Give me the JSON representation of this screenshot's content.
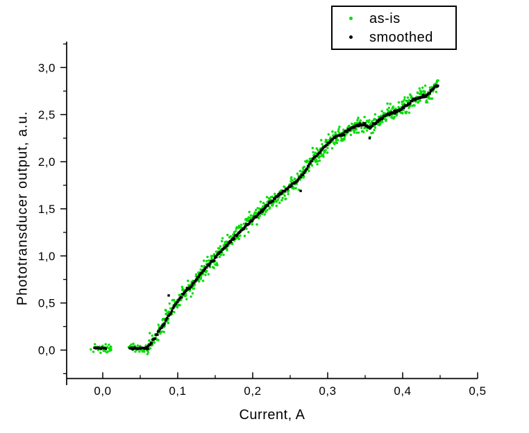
{
  "chart_data": {
    "type": "scatter",
    "title": "",
    "xlabel": "Current, A",
    "ylabel": "Phototransducer output, a.u.",
    "xlim": [
      -0.05,
      0.5
    ],
    "ylim": [
      -0.3,
      3.27
    ],
    "grid": false,
    "background": "#ffffff",
    "axis_color": "#000000",
    "decimal_separator": ",",
    "x_ticks": {
      "major": [
        0.0,
        0.1,
        0.2,
        0.3,
        0.4,
        0.5
      ],
      "labels": [
        "0,0",
        "0,1",
        "0,2",
        "0,3",
        "0,4",
        "0,5"
      ],
      "minor": [
        0.05,
        0.15,
        0.25,
        0.35,
        0.45
      ]
    },
    "y_ticks": {
      "major": [
        0.0,
        0.5,
        1.0,
        1.5,
        2.0,
        2.5,
        3.0
      ],
      "labels": [
        "0,0",
        "0,5",
        "1,0",
        "1,5",
        "2,0",
        "2,5",
        "3,0"
      ],
      "minor": [
        -0.25,
        0.25,
        0.75,
        1.25,
        1.75,
        2.25,
        2.75,
        3.25
      ]
    },
    "legend": {
      "position": "top-right",
      "entries": [
        {
          "label": "as-is",
          "color": "#00dd00",
          "marker": "dot"
        },
        {
          "label": "smoothed",
          "color": "#000000",
          "marker": "dot"
        }
      ]
    },
    "series": [
      {
        "name": "as-is",
        "color": "#00dd00",
        "marker": "dot",
        "marker_size_px": 3.4,
        "noise_y_sigma": 0.045,
        "n_points": 800
      },
      {
        "name": "smoothed",
        "color": "#000000",
        "marker": "square",
        "marker_size_px": 3.4,
        "noise_y_sigma": 0.007,
        "n_points": 360,
        "outliers": [
          [
            0.088,
            0.58
          ],
          [
            0.264,
            1.69
          ],
          [
            0.356,
            2.25
          ]
        ]
      }
    ],
    "flat_segments": [
      {
        "x_start": -0.016,
        "x_end": 0.012,
        "x_start_black": -0.011,
        "x_end_black": 0.004,
        "y": 0.02
      },
      {
        "x_start": 0.034,
        "x_end": 0.06,
        "x_start_black": 0.036,
        "x_end_black": 0.06,
        "y": 0.02
      }
    ],
    "curve_x_range": [
      0.06,
      0.447
    ],
    "curve_anchors": [
      [
        0.06,
        0.03
      ],
      [
        0.065,
        0.08
      ],
      [
        0.07,
        0.14
      ],
      [
        0.08,
        0.26
      ],
      [
        0.09,
        0.39
      ],
      [
        0.1,
        0.52
      ],
      [
        0.11,
        0.62
      ],
      [
        0.12,
        0.7
      ],
      [
        0.13,
        0.8
      ],
      [
        0.14,
        0.89
      ],
      [
        0.15,
        0.98
      ],
      [
        0.16,
        1.07
      ],
      [
        0.17,
        1.15
      ],
      [
        0.18,
        1.23
      ],
      [
        0.19,
        1.31
      ],
      [
        0.2,
        1.39
      ],
      [
        0.21,
        1.46
      ],
      [
        0.22,
        1.54
      ],
      [
        0.23,
        1.61
      ],
      [
        0.24,
        1.68
      ],
      [
        0.25,
        1.74
      ],
      [
        0.26,
        1.8
      ],
      [
        0.27,
        1.9
      ],
      [
        0.28,
        2.03
      ],
      [
        0.29,
        2.11
      ],
      [
        0.3,
        2.19
      ],
      [
        0.31,
        2.26
      ],
      [
        0.32,
        2.29
      ],
      [
        0.33,
        2.35
      ],
      [
        0.34,
        2.39
      ],
      [
        0.35,
        2.39
      ],
      [
        0.356,
        2.36
      ],
      [
        0.365,
        2.42
      ],
      [
        0.375,
        2.48
      ],
      [
        0.385,
        2.52
      ],
      [
        0.395,
        2.54
      ],
      [
        0.405,
        2.6
      ],
      [
        0.415,
        2.66
      ],
      [
        0.425,
        2.69
      ],
      [
        0.433,
        2.71
      ],
      [
        0.44,
        2.77
      ],
      [
        0.447,
        2.81
      ]
    ]
  }
}
